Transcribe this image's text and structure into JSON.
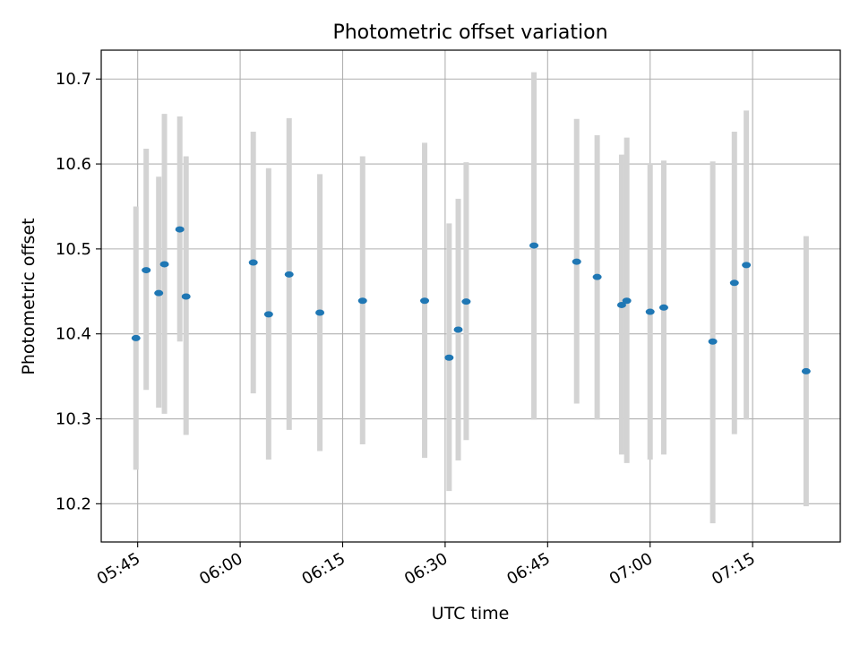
{
  "chart_data": {
    "type": "scatter",
    "title": "Photometric offset variation",
    "xlabel": "UTC time",
    "ylabel": "Photometric offset",
    "xlim": [
      "05:39:40",
      "07:27:50"
    ],
    "ylim": [
      10.155,
      10.734
    ],
    "x_ticks": [
      "05:45",
      "06:00",
      "06:15",
      "06:30",
      "06:45",
      "07:00",
      "07:15"
    ],
    "y_ticks": [
      10.2,
      10.3,
      10.4,
      10.5,
      10.6,
      10.7
    ],
    "y_tick_labels": [
      "10.2",
      "10.3",
      "10.4",
      "10.5",
      "10.6",
      "10.7"
    ],
    "grid": true,
    "colors": {
      "marker": "#1f77b4",
      "errorbar": "#d3d3d3",
      "grid": "#b0b0b0"
    },
    "points": [
      {
        "time": "05:44:45",
        "y": 10.395,
        "low": 10.24,
        "high": 10.55
      },
      {
        "time": "05:46:15",
        "y": 10.475,
        "low": 10.334,
        "high": 10.618
      },
      {
        "time": "05:48:05",
        "y": 10.448,
        "low": 10.313,
        "high": 10.585
      },
      {
        "time": "05:48:55",
        "y": 10.482,
        "low": 10.306,
        "high": 10.659
      },
      {
        "time": "05:51:10",
        "y": 10.523,
        "low": 10.391,
        "high": 10.656
      },
      {
        "time": "05:52:05",
        "y": 10.444,
        "low": 10.281,
        "high": 10.609
      },
      {
        "time": "06:01:55",
        "y": 10.484,
        "low": 10.33,
        "high": 10.638
      },
      {
        "time": "06:04:10",
        "y": 10.423,
        "low": 10.252,
        "high": 10.595
      },
      {
        "time": "06:07:10",
        "y": 10.47,
        "low": 10.287,
        "high": 10.654
      },
      {
        "time": "06:11:40",
        "y": 10.425,
        "low": 10.262,
        "high": 10.588
      },
      {
        "time": "06:17:55",
        "y": 10.439,
        "low": 10.27,
        "high": 10.609
      },
      {
        "time": "06:27:00",
        "y": 10.439,
        "low": 10.254,
        "high": 10.625
      },
      {
        "time": "06:30:35",
        "y": 10.372,
        "low": 10.215,
        "high": 10.53
      },
      {
        "time": "06:31:55",
        "y": 10.405,
        "low": 10.251,
        "high": 10.559
      },
      {
        "time": "06:33:05",
        "y": 10.438,
        "low": 10.275,
        "high": 10.602
      },
      {
        "time": "06:43:00",
        "y": 10.504,
        "low": 10.299,
        "high": 10.708
      },
      {
        "time": "06:49:15",
        "y": 10.485,
        "low": 10.318,
        "high": 10.653
      },
      {
        "time": "06:52:15",
        "y": 10.467,
        "low": 10.299,
        "high": 10.634
      },
      {
        "time": "06:55:50",
        "y": 10.434,
        "low": 10.258,
        "high": 10.611
      },
      {
        "time": "06:56:35",
        "y": 10.439,
        "low": 10.248,
        "high": 10.631
      },
      {
        "time": "07:00:00",
        "y": 10.426,
        "low": 10.252,
        "high": 10.601
      },
      {
        "time": "07:02:00",
        "y": 10.431,
        "low": 10.258,
        "high": 10.604
      },
      {
        "time": "07:09:10",
        "y": 10.391,
        "low": 10.177,
        "high": 10.603
      },
      {
        "time": "07:12:20",
        "y": 10.46,
        "low": 10.282,
        "high": 10.638
      },
      {
        "time": "07:14:05",
        "y": 10.481,
        "low": 10.299,
        "high": 10.663
      },
      {
        "time": "07:22:50",
        "y": 10.356,
        "low": 10.197,
        "high": 10.515
      }
    ]
  }
}
